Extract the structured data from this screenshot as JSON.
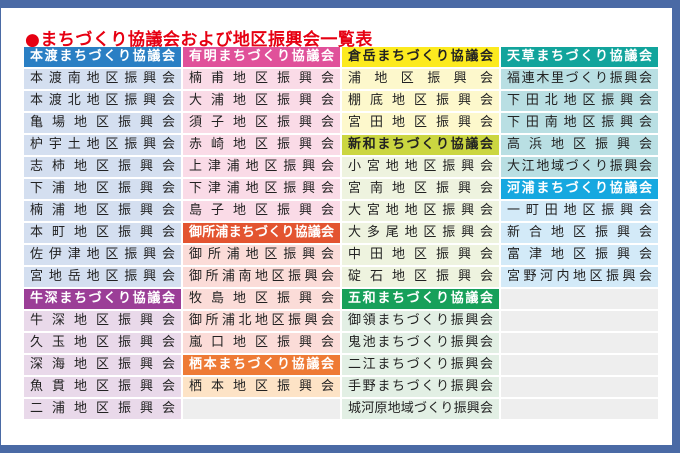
{
  "title": "●まちづくり協議会および地区振興会一覧表",
  "columns": [
    [
      {
        "t": "本渡まちづくり協議会",
        "h": true,
        "bg": "#2a7fc4",
        "fg": "#ffffff"
      },
      {
        "t": "本渡南地区振興会",
        "bg": "#d4dff0"
      },
      {
        "t": "本渡北地区振興会",
        "bg": "#d4dff0"
      },
      {
        "t": "亀場地区振興会",
        "bg": "#d4dff0"
      },
      {
        "t": "枦宇土地区振興会",
        "bg": "#d4dff0"
      },
      {
        "t": "志柿地区振興会",
        "bg": "#d4dff0"
      },
      {
        "t": "下浦地区振興会",
        "bg": "#d4dff0"
      },
      {
        "t": "楠浦地区振興会",
        "bg": "#d4dff0"
      },
      {
        "t": "本町地区振興会",
        "bg": "#d4dff0"
      },
      {
        "t": "佐伊津地区振興会",
        "bg": "#d4dff0"
      },
      {
        "t": "宮地岳地区振興会",
        "bg": "#d4dff0"
      },
      {
        "t": "牛深まちづくり協議会",
        "h": true,
        "bg": "#9b3e97",
        "fg": "#ffffff"
      },
      {
        "t": "牛深地区振興会",
        "bg": "#e9d9ea"
      },
      {
        "t": "久玉地区振興会",
        "bg": "#e9d9ea"
      },
      {
        "t": "深海地区振興会",
        "bg": "#e9d9ea"
      },
      {
        "t": "魚貫地区振興会",
        "bg": "#e9d9ea"
      },
      {
        "t": "二浦地区振興会",
        "bg": "#e9d9ea"
      }
    ],
    [
      {
        "t": "有明まちづくり協議会",
        "h": true,
        "bg": "#e0519a",
        "fg": "#ffffff"
      },
      {
        "t": "楠甫地区振興会",
        "bg": "#fadbe7"
      },
      {
        "t": "大浦地区振興会",
        "bg": "#fadbe7"
      },
      {
        "t": "須子地区振興会",
        "bg": "#fadbe7"
      },
      {
        "t": "赤崎地区振興会",
        "bg": "#fadbe7"
      },
      {
        "t": "上津浦地区振興会",
        "bg": "#fadbe7"
      },
      {
        "t": "下津浦地区振興会",
        "bg": "#fadbe7"
      },
      {
        "t": "島子地区振興会",
        "bg": "#fadbe7"
      },
      {
        "t": "御所浦まちづくり協議会",
        "h": true,
        "bg": "#e35430",
        "fg": "#ffffff"
      },
      {
        "t": "御所浦地区振興会",
        "bg": "#fbdcd8"
      },
      {
        "t": "御所浦南地区振興会",
        "bg": "#fbdcd8"
      },
      {
        "t": "牧島地区振興会",
        "bg": "#fbdcd8"
      },
      {
        "t": "御所浦北地区振興会",
        "bg": "#fbdcd8"
      },
      {
        "t": "嵐口地区振興会",
        "bg": "#fbdcd8"
      },
      {
        "t": "栖本まちづくり協議会",
        "h": true,
        "bg": "#ee7a35",
        "fg": "#ffffff"
      },
      {
        "t": "栖本地区振興会",
        "bg": "#fde3c6"
      },
      {
        "t": "",
        "bg": "#eeeeee"
      }
    ],
    [
      {
        "t": "倉岳まちづくり協議会",
        "h": true,
        "bg": "#fcea1f",
        "fg": "#222222"
      },
      {
        "t": "浦地区振興会",
        "bg": "#fdf8cc"
      },
      {
        "t": "棚底地区振興会",
        "bg": "#fdf8cc"
      },
      {
        "t": "宮田地区振興会",
        "bg": "#fdf8cc"
      },
      {
        "t": "新和まちづくり協議会",
        "h": true,
        "bg": "#cbd641",
        "fg": "#222222"
      },
      {
        "t": "小宮地地区振興会",
        "bg": "#eef3df"
      },
      {
        "t": "宮南地区振興会",
        "bg": "#eef3df"
      },
      {
        "t": "大宮地地区振興会",
        "bg": "#eef3df"
      },
      {
        "t": "大多尾地区振興会",
        "bg": "#eef3df"
      },
      {
        "t": "中田地区振興会",
        "bg": "#eef3df"
      },
      {
        "t": "碇石地区振興会",
        "bg": "#eef3df"
      },
      {
        "t": "五和まちづくり協議会",
        "h": true,
        "bg": "#17a05a",
        "fg": "#ffffff"
      },
      {
        "t": "御領まちづくり振興会",
        "bg": "#e2efe4"
      },
      {
        "t": "鬼池まちづくり振興会",
        "bg": "#e2efe4"
      },
      {
        "t": "二江まちづくり振興会",
        "bg": "#e2efe4"
      },
      {
        "t": "手野まちづくり振興会",
        "bg": "#e2efe4"
      },
      {
        "t": "城河原地域づくり振興会",
        "bg": "#e2efe4"
      }
    ],
    [
      {
        "t": "天草まちづくり協議会",
        "h": true,
        "bg": "#12a49c",
        "fg": "#ffffff"
      },
      {
        "t": "福連木里づくり振興会",
        "bg": "#b9dfe3"
      },
      {
        "t": "下田北地区振興会",
        "bg": "#b9dfe3"
      },
      {
        "t": "下田南地区振興会",
        "bg": "#b9dfe3"
      },
      {
        "t": "高浜地区振興会",
        "bg": "#b9dfe3"
      },
      {
        "t": "大江地域づくり振興会",
        "bg": "#b9dfe3"
      },
      {
        "t": "河浦まちづくり協議会",
        "h": true,
        "bg": "#16a8e0",
        "fg": "#ffffff"
      },
      {
        "t": "一町田地区振興会",
        "bg": "#d3eaf8"
      },
      {
        "t": "新合地区振興会",
        "bg": "#d3eaf8"
      },
      {
        "t": "富津地区振興会",
        "bg": "#d3eaf8"
      },
      {
        "t": "宮野河内地区振興会",
        "bg": "#d3eaf8"
      },
      {
        "t": "",
        "bg": "#eeeeee"
      },
      {
        "t": "",
        "bg": "#eeeeee"
      },
      {
        "t": "",
        "bg": "#eeeeee"
      },
      {
        "t": "",
        "bg": "#eeeeee"
      },
      {
        "t": "",
        "bg": "#eeeeee"
      },
      {
        "t": "",
        "bg": "#eeeeee"
      }
    ]
  ]
}
